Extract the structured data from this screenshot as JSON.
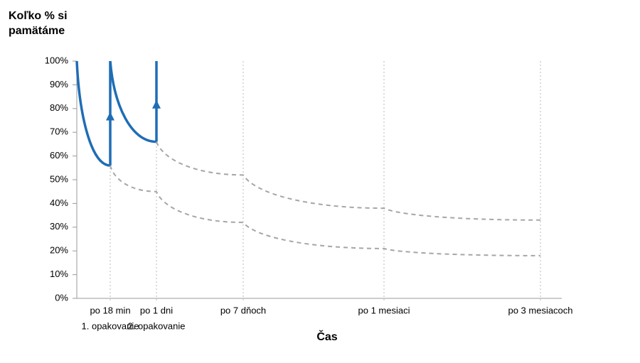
{
  "chart_data": {
    "type": "line",
    "title": "Koľko % si pamätáme",
    "x_label": "Čas",
    "categories": [
      null,
      "po 18 min",
      "po 1 dni",
      "po 7 dňoch",
      "po 1 mesiaci",
      "po 3 mesiacoch"
    ],
    "category_notes": [
      null,
      "1. opakovanie",
      "2. opakovanie",
      null,
      null,
      null
    ],
    "ylim": [
      0,
      100
    ],
    "yticks": [
      {
        "value": 0,
        "label": "0%"
      },
      {
        "value": 10,
        "label": "10%"
      },
      {
        "value": 20,
        "label": "20%"
      },
      {
        "value": 30,
        "label": "30%"
      },
      {
        "value": 40,
        "label": "40%"
      },
      {
        "value": 50,
        "label": "50%"
      },
      {
        "value": 60,
        "label": "60%"
      },
      {
        "value": 70,
        "label": "70%"
      },
      {
        "value": 80,
        "label": "80%"
      },
      {
        "value": 90,
        "label": "90%"
      },
      {
        "value": 100,
        "label": "100%"
      }
    ],
    "series": [
      {
        "color": "#1f6db5",
        "dashed": false,
        "values": [
          100,
          56,
          null,
          null,
          null,
          null
        ]
      },
      {
        "color": "#1f6db5",
        "dashed": false,
        "values": [
          null,
          100,
          66,
          null,
          null,
          null
        ]
      },
      {
        "color": "#a6a6a6",
        "dashed": true,
        "values": [
          null,
          56,
          45,
          32,
          21,
          18
        ]
      },
      {
        "color": "#a6a6a6",
        "dashed": true,
        "values": [
          null,
          null,
          66,
          52,
          38,
          33
        ]
      }
    ]
  }
}
